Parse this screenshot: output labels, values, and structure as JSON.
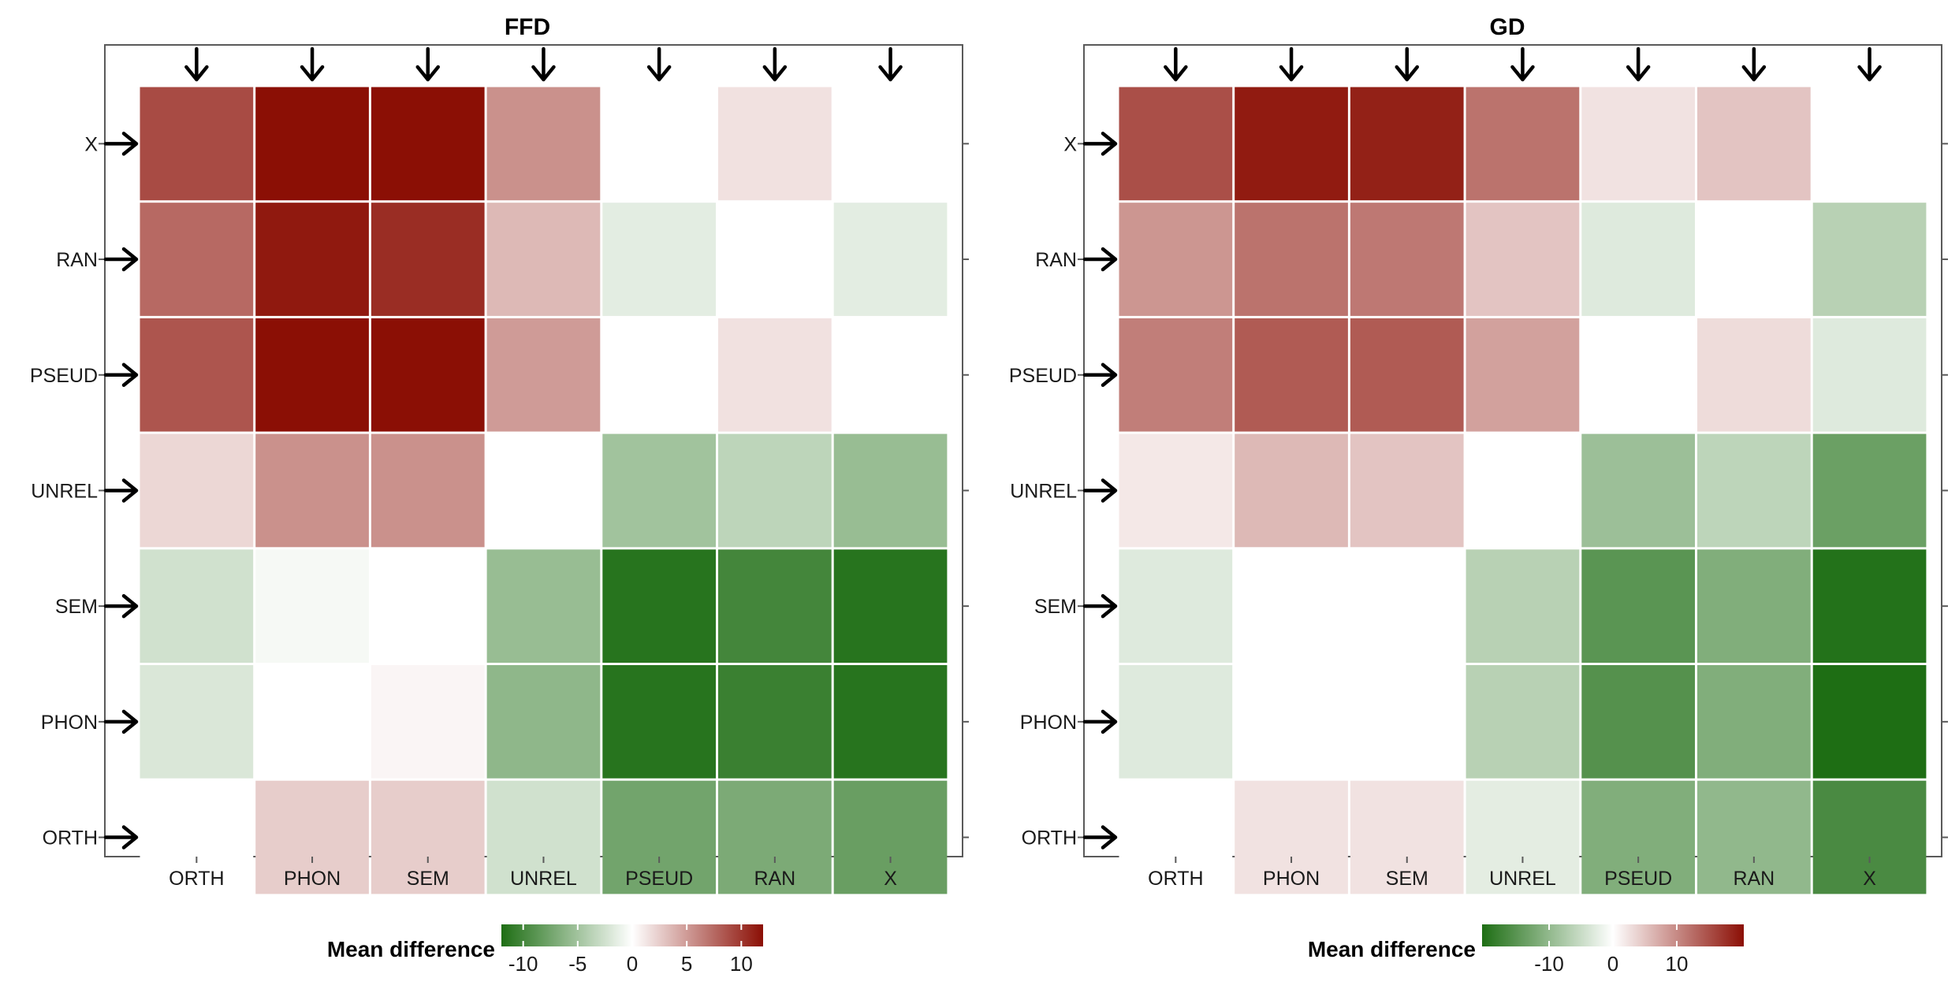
{
  "chart_data": [
    {
      "type": "heatmap",
      "title": "FFD",
      "x_categories": [
        "ORTH",
        "PHON",
        "SEM",
        "UNREL",
        "PSEUD",
        "RAN",
        "X"
      ],
      "y_categories_top_to_bottom": [
        "X",
        "RAN",
        "PSEUD",
        "UNREL",
        "SEM",
        "PHON",
        "ORTH"
      ],
      "values": [
        [
          9,
          14,
          14.5,
          5.5,
          0,
          1.5,
          0
        ],
        [
          7.5,
          11.5,
          10.5,
          3.5,
          -1.5,
          0,
          -1.5
        ],
        [
          8.5,
          14,
          14,
          5,
          0,
          1.5,
          0
        ],
        [
          2,
          5.5,
          5.5,
          0,
          -5,
          -3.5,
          -5.5
        ],
        [
          -2.5,
          -0.5,
          0,
          -5.5,
          -11.5,
          -10,
          -11.5
        ],
        [
          -2,
          0,
          0.5,
          -6,
          -11.5,
          -10.5,
          -11.5
        ],
        [
          0,
          2.5,
          2.5,
          -2.5,
          -7.5,
          -7,
          -8
        ]
      ],
      "colorbar": {
        "label": "Mean  difference",
        "ticks": [
          "-10",
          "-5",
          "0",
          "5",
          "10"
        ],
        "tick_values": [
          -10,
          -5,
          0,
          5,
          10
        ],
        "range": [
          -12,
          12
        ],
        "low_color": "#1e6e14",
        "mid_color": "#ffffff",
        "high_color": "#8b0f05"
      },
      "markers": "arrow"
    },
    {
      "type": "heatmap",
      "title": "GD",
      "x_categories": [
        "ORTH",
        "PHON",
        "SEM",
        "UNREL",
        "PSEUD",
        "RAN",
        "X"
      ],
      "y_categories_top_to_bottom": [
        "X",
        "RAN",
        "PSEUD",
        "UNREL",
        "SEM",
        "PHON",
        "ORTH"
      ],
      "values": [
        [
          15,
          19.5,
          19,
          12,
          2.5,
          5,
          0
        ],
        [
          9,
          12,
          11.5,
          5,
          -3,
          0,
          -6.5
        ],
        [
          11,
          14,
          14,
          8,
          0,
          3,
          -3
        ],
        [
          2,
          6,
          5,
          0,
          -9,
          -6,
          -13.5
        ],
        [
          -3,
          0,
          0,
          -6.5,
          -15,
          -11.5,
          -20
        ],
        [
          -3,
          0,
          0,
          -6.5,
          -15.5,
          -11.5,
          -20.5
        ],
        [
          0,
          2.5,
          2.5,
          -2.5,
          -11.5,
          -10,
          -16.5
        ]
      ],
      "colorbar": {
        "label": "Mean  difference",
        "ticks": [
          "-10",
          "0",
          "10"
        ],
        "tick_values": [
          -10,
          0,
          10
        ],
        "range": [
          -20.5,
          20.5
        ],
        "low_color": "#1e6e14",
        "mid_color": "#ffffff",
        "high_color": "#8b0f05"
      },
      "markers": "arrow"
    }
  ]
}
